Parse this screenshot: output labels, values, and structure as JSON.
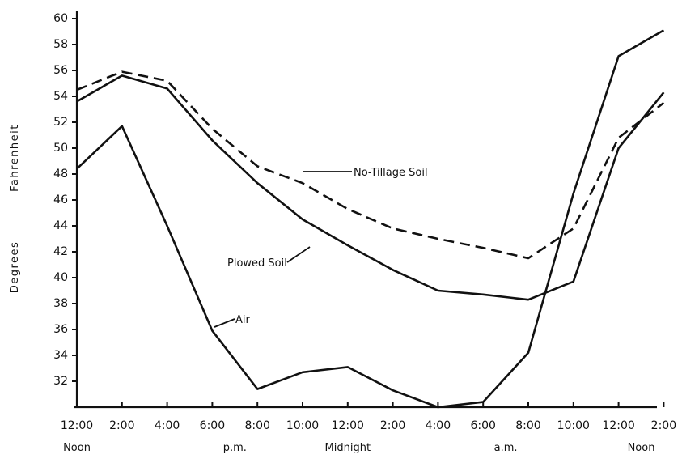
{
  "chart_data": {
    "type": "line",
    "xlabel": "",
    "ylabel": "Degrees Fahrenheit",
    "ylabel_words": [
      "Degrees",
      "Fahrenheit"
    ],
    "ylim": [
      30,
      60
    ],
    "yticks": [
      32,
      34,
      36,
      38,
      40,
      42,
      44,
      46,
      48,
      50,
      52,
      54,
      56,
      58,
      60
    ],
    "categories": [
      "12:00",
      "2:00",
      "4:00",
      "6:00",
      "8:00",
      "10:00",
      "12:00",
      "2:00",
      "4:00",
      "6:00",
      "8:00",
      "10:00",
      "12:00",
      "2:00"
    ],
    "period_labels": [
      {
        "text": "Noon",
        "category_index": 0
      },
      {
        "text": "p.m.",
        "category_index": 3.5
      },
      {
        "text": "Midnight",
        "category_index": 6
      },
      {
        "text": "a.m.",
        "category_index": 9.5
      },
      {
        "text": "Noon",
        "category_index": 12.5
      }
    ],
    "series": [
      {
        "name": "No-Tillage Soil",
        "style": "dashed",
        "x": [
          0,
          1,
          2,
          3,
          4,
          5,
          6,
          7,
          8,
          9,
          10,
          11,
          12,
          13
        ],
        "values": [
          54.5,
          55.9,
          55.2,
          51.5,
          48.6,
          47.3,
          45.3,
          43.8,
          43.0,
          42.3,
          41.5,
          43.8,
          50.8,
          53.5
        ]
      },
      {
        "name": "Plowed Soil",
        "style": "solid",
        "x": [
          0,
          1,
          2,
          3,
          4,
          5,
          6,
          7,
          8,
          9,
          10,
          11,
          12,
          13
        ],
        "values": [
          53.6,
          55.6,
          54.6,
          50.6,
          47.3,
          44.5,
          42.5,
          40.6,
          39.0,
          38.7,
          38.3,
          39.7,
          50.0,
          54.3
        ]
      },
      {
        "name": "Air",
        "style": "solid",
        "x": [
          0,
          1,
          2,
          3,
          4,
          5,
          6,
          7,
          8,
          9,
          10,
          11,
          12,
          13
        ],
        "values": [
          48.4,
          51.7,
          44.0,
          35.9,
          31.4,
          32.7,
          33.1,
          31.3,
          30.0,
          30.4,
          34.2,
          46.5,
          57.1,
          59.1
        ]
      }
    ],
    "annotations": [
      {
        "text": "No-Tillage Soil",
        "series": "No-Tillage Soil"
      },
      {
        "text": "Plowed Soil",
        "series": "Plowed Soil"
      },
      {
        "text": "Air",
        "series": "Air"
      }
    ],
    "grid": false,
    "legend": "none"
  }
}
